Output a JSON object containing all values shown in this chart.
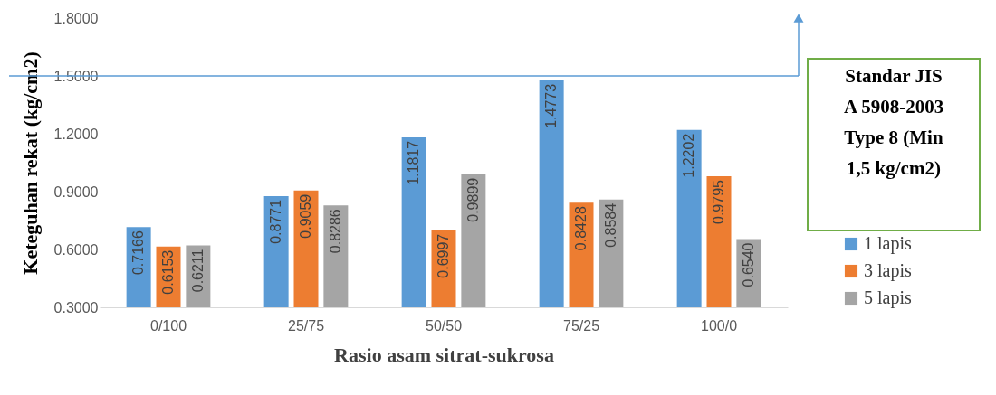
{
  "chart_data": {
    "type": "bar",
    "xlabel": "Rasio asam sitrat-sukrosa",
    "ylabel": "Keteguhan rekat (kg/cm2)",
    "categories": [
      "0/100",
      "25/75",
      "50/50",
      "75/25",
      "100/0"
    ],
    "series": [
      {
        "name": "1 lapis",
        "color": "#5b9bd5",
        "values": [
          0.7166,
          0.8771,
          1.1817,
          1.4773,
          1.2202
        ],
        "value_labels": [
          "0.7166",
          "0.8771",
          "1.1817",
          "1.4773",
          "1.2202"
        ]
      },
      {
        "name": "3 lapis",
        "color": "#ed7d31",
        "values": [
          0.6153,
          0.9059,
          0.6997,
          0.8428,
          0.9795
        ],
        "value_labels": [
          "0.6153",
          "0.9059",
          "0.6997",
          "0.8428",
          "0.9795"
        ]
      },
      {
        "name": "5 lapis",
        "color": "#a5a5a5",
        "values": [
          0.6211,
          0.8286,
          0.9899,
          0.8584,
          0.654
        ],
        "value_labels": [
          "0.6211",
          "0.8286",
          "0.9899",
          "0.8584",
          "0.6540"
        ]
      }
    ],
    "ylim": [
      0.3,
      1.8
    ],
    "yticks": [
      {
        "value": 0.3,
        "label": "0.3000"
      },
      {
        "value": 0.6,
        "label": "0.6000"
      },
      {
        "value": 0.9,
        "label": "0.9000"
      },
      {
        "value": 1.2,
        "label": "1.2000"
      },
      {
        "value": 1.5,
        "label": "1.5000"
      },
      {
        "value": 1.8,
        "label": "1.8000"
      }
    ],
    "ref_lines": [
      {
        "axis": "y",
        "value": 1.5,
        "label": "Standar JIS A 5908-2003 Type 8 (Min 1,5 kg/cm2)",
        "color": "#5b9bd5"
      }
    ],
    "legend": "bottom right",
    "grid": false
  }
}
